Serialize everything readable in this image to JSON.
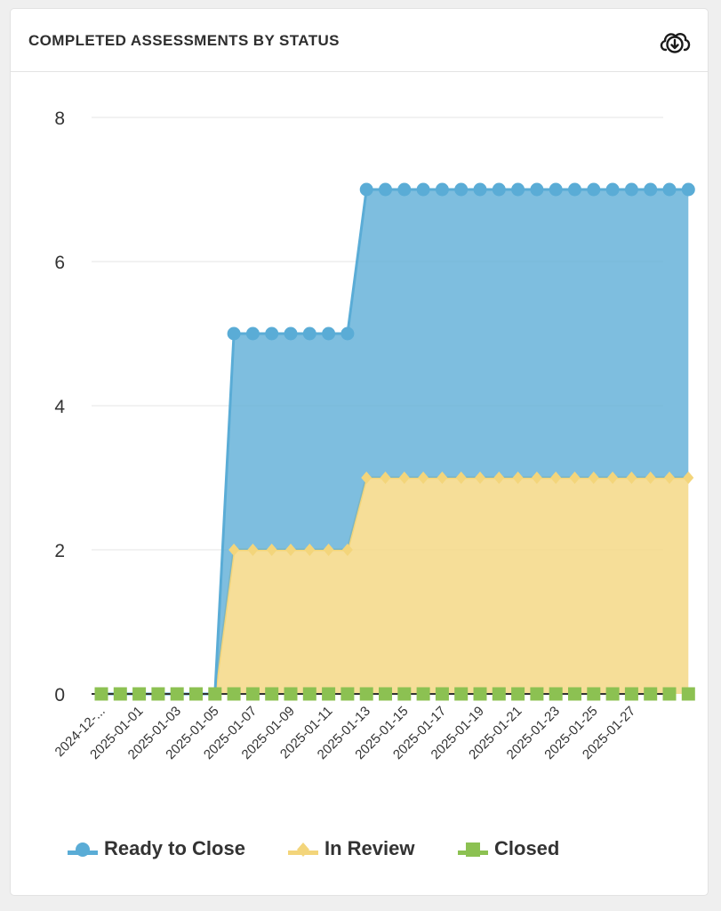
{
  "header": {
    "title": "COMPLETED ASSESSMENTS BY STATUS",
    "download_icon": "cloud-download-icon"
  },
  "chart_data": {
    "type": "area",
    "stacked": true,
    "title": "COMPLETED ASSESSMENTS BY STATUS",
    "x_tick_labels": [
      "2024-12-...",
      "2025-01-01",
      "2025-01-03",
      "2025-01-05",
      "2025-01-07",
      "2025-01-09",
      "2025-01-11",
      "2025-01-13",
      "2025-01-15",
      "2025-01-17",
      "2025-01-19",
      "2025-01-21",
      "2025-01-23",
      "2025-01-25",
      "2025-01-27"
    ],
    "x": [
      "2024-12-30",
      "2024-12-31",
      "2025-01-01",
      "2025-01-02",
      "2025-01-03",
      "2025-01-04",
      "2025-01-05",
      "2025-01-06",
      "2025-01-07",
      "2025-01-08",
      "2025-01-09",
      "2025-01-10",
      "2025-01-11",
      "2025-01-12",
      "2025-01-13",
      "2025-01-14",
      "2025-01-15",
      "2025-01-16",
      "2025-01-17",
      "2025-01-18",
      "2025-01-19",
      "2025-01-20",
      "2025-01-21",
      "2025-01-22",
      "2025-01-23",
      "2025-01-24",
      "2025-01-25",
      "2025-01-26",
      "2025-01-27",
      "2025-01-28",
      "2025-01-29",
      "2025-01-30"
    ],
    "series": [
      {
        "name": "Closed",
        "color": "#8cc152",
        "marker": "square",
        "values": [
          0,
          0,
          0,
          0,
          0,
          0,
          0,
          0,
          0,
          0,
          0,
          0,
          0,
          0,
          0,
          0,
          0,
          0,
          0,
          0,
          0,
          0,
          0,
          0,
          0,
          0,
          0,
          0,
          0,
          0,
          0,
          0
        ]
      },
      {
        "name": "In Review",
        "color": "#f3d57b",
        "marker": "diamond",
        "values": [
          0,
          0,
          0,
          0,
          0,
          0,
          0,
          2,
          2,
          2,
          2,
          2,
          2,
          2,
          3,
          3,
          3,
          3,
          3,
          3,
          3,
          3,
          3,
          3,
          3,
          3,
          3,
          3,
          3,
          3,
          3,
          3
        ]
      },
      {
        "name": "Ready to Close",
        "color": "#5aacd6",
        "marker": "circle",
        "values": [
          0,
          0,
          0,
          0,
          0,
          0,
          0,
          3,
          3,
          3,
          3,
          3,
          3,
          3,
          4,
          4,
          4,
          4,
          4,
          4,
          4,
          4,
          4,
          4,
          4,
          4,
          4,
          4,
          4,
          4,
          4,
          4
        ]
      }
    ],
    "marker_start_index": {
      "Closed": 0,
      "In Review": 7,
      "Ready to Close": 7
    },
    "ylim": [
      0,
      8
    ],
    "y_ticks": [
      0,
      2,
      4,
      6,
      8
    ],
    "xlabel": "",
    "ylabel": "",
    "grid": true,
    "legend_position": "bottom"
  },
  "legend": [
    {
      "label": "Ready to Close",
      "color": "#5aacd6",
      "marker": "circle"
    },
    {
      "label": "In Review",
      "color": "#f3d57b",
      "marker": "diamond"
    },
    {
      "label": "Closed",
      "color": "#8cc152",
      "marker": "square"
    }
  ]
}
